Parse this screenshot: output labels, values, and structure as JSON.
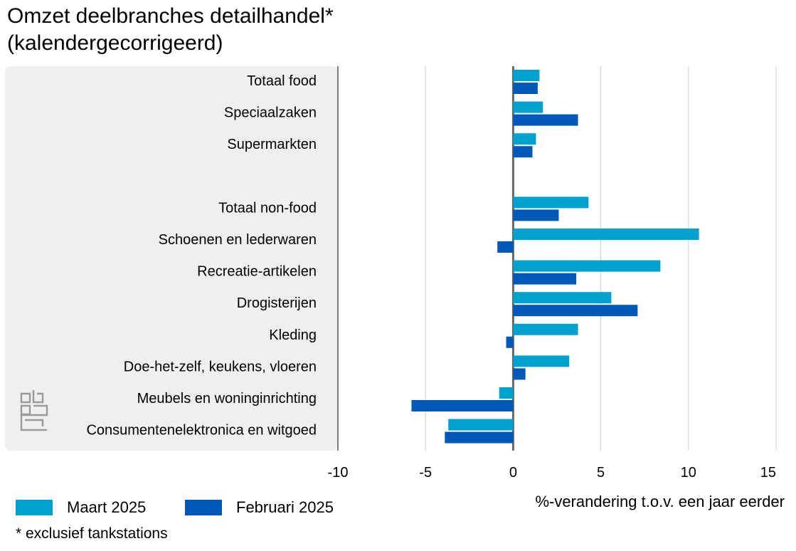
{
  "chart_data": {
    "type": "bar",
    "orientation": "horizontal",
    "title": "Omzet deelbranches detailhandel*\n(kalendergecorrigeerd)",
    "xlabel": "%-verandering t.o.v. een jaar eerder",
    "xlim": [
      -10,
      15
    ],
    "xticks": [
      -10,
      -5,
      0,
      5,
      10,
      15
    ],
    "grid": true,
    "legend_position": "bottom-left",
    "footnote": "* exclusief tankstations",
    "categories": [
      "Totaal food",
      "Speciaalzaken",
      "Supermarkten",
      "",
      "Totaal non-food",
      "Schoenen en lederwaren",
      "Recreatie-artikelen",
      "Drogisterijen",
      "Kleding",
      "Doe-het-zelf, keukens, vloeren",
      "Meubels en woninginrichting",
      "Consumentenelektronica en witgoed"
    ],
    "series": [
      {
        "name": "Maart 2025",
        "color": "#00a1cd",
        "values": [
          1.5,
          1.7,
          1.3,
          null,
          4.3,
          10.6,
          8.4,
          5.6,
          3.7,
          3.2,
          -0.8,
          -3.7
        ]
      },
      {
        "name": "Februari 2025",
        "color": "#0058b8",
        "values": [
          1.4,
          3.7,
          1.1,
          null,
          2.6,
          -0.9,
          3.6,
          7.1,
          -0.4,
          0.7,
          -5.8,
          -3.9
        ]
      }
    ]
  },
  "logo": {
    "name": "cbs-logo"
  }
}
